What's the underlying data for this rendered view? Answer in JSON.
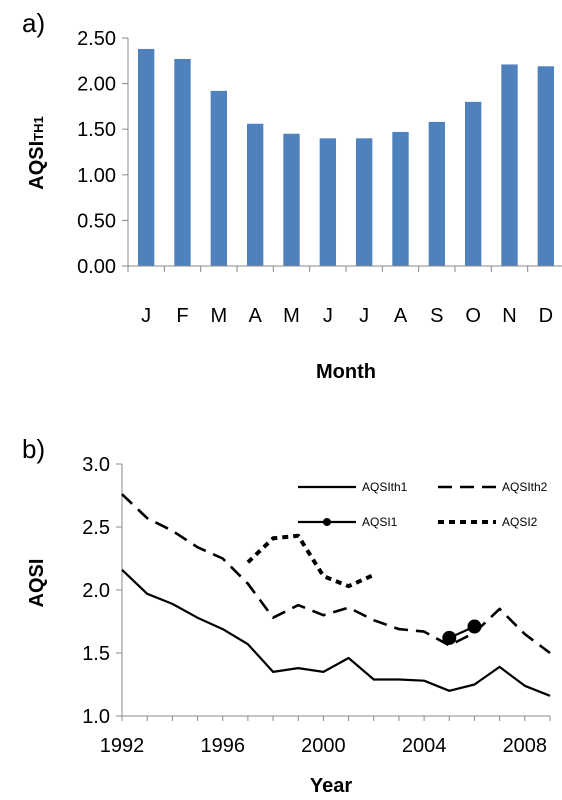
{
  "chart_data": [
    {
      "panel_label": "a)",
      "type": "bar",
      "categories": [
        "J",
        "F",
        "M",
        "A",
        "M",
        "J",
        "J",
        "A",
        "S",
        "O",
        "N",
        "D"
      ],
      "values": [
        2.38,
        2.27,
        1.92,
        1.56,
        1.45,
        1.4,
        1.4,
        1.47,
        1.58,
        1.8,
        2.21,
        2.19
      ],
      "bar_color": "#4f81bd",
      "xlabel": "Month",
      "ylabel": {
        "main": "AQSI",
        "subscript": "TH1"
      },
      "ylim": [
        0,
        2.5
      ],
      "yticks": [
        "0.00",
        "0.50",
        "1.00",
        "1.50",
        "2.00",
        "2.50"
      ],
      "grid": false
    },
    {
      "panel_label": "b)",
      "type": "line",
      "xlabel": "Year",
      "ylabel": "AQSI",
      "xlim": [
        1992,
        2009
      ],
      "ylim": [
        1.0,
        3.0
      ],
      "xticks": [
        "1992",
        "1996",
        "2000",
        "2004",
        "2008"
      ],
      "yticks": [
        "1.0",
        "1.5",
        "2.0",
        "2.5",
        "3.0"
      ],
      "legend_position": "top-right",
      "grid": false,
      "series": [
        {
          "name": "AQSIth1",
          "style": "solid",
          "x": [
            1992,
            1993,
            1994,
            1995,
            1996,
            1997,
            1998,
            1999,
            2000,
            2001,
            2002,
            2003,
            2004,
            2005,
            2006,
            2007,
            2008,
            2009
          ],
          "y": [
            2.16,
            1.97,
            1.89,
            1.78,
            1.69,
            1.57,
            1.35,
            1.38,
            1.35,
            1.46,
            1.29,
            1.29,
            1.28,
            1.2,
            1.25,
            1.39,
            1.24,
            1.16
          ]
        },
        {
          "name": "AQSIth2",
          "style": "dashed",
          "x": [
            1992,
            1993,
            1994,
            1995,
            1996,
            1997,
            1998,
            1999,
            2000,
            2001,
            2002,
            2003,
            2004,
            2005,
            2006,
            2007,
            2008,
            2009
          ],
          "y": [
            2.76,
            2.57,
            2.47,
            2.34,
            2.25,
            2.05,
            1.78,
            1.88,
            1.8,
            1.86,
            1.76,
            1.69,
            1.67,
            1.56,
            1.66,
            1.85,
            1.65,
            1.5
          ]
        },
        {
          "name": "AQSI1",
          "style": "solid-marker",
          "x": [
            2005,
            2006
          ],
          "y": [
            1.62,
            1.71
          ]
        },
        {
          "name": "AQSI2",
          "style": "dotted",
          "x": [
            1997,
            1998,
            1999,
            2000,
            2001,
            2002
          ],
          "y": [
            2.22,
            2.41,
            2.43,
            2.11,
            2.03,
            2.12
          ]
        }
      ]
    }
  ]
}
